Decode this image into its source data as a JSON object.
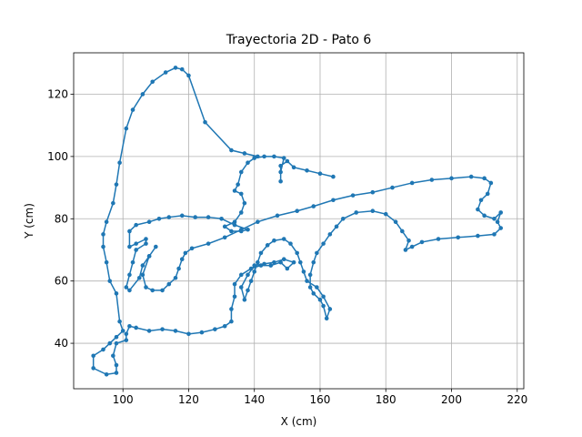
{
  "chart_data": {
    "type": "line",
    "title": "Trayectoria 2D - Pato 6",
    "x_label": "X (cm)",
    "y_label": "Y (cm)",
    "color": "#1f77b4",
    "grid": true,
    "xlim": [
      85,
      222
    ],
    "ylim": [
      25.4,
      133.3
    ],
    "xticks": [
      100,
      120,
      140,
      160,
      180,
      200,
      220
    ],
    "yticks": [
      40,
      60,
      80,
      100,
      120
    ],
    "x": [
      164,
      160,
      156,
      152,
      150,
      148,
      148,
      148,
      149,
      146,
      143,
      140,
      138,
      136,
      135,
      134,
      136,
      137,
      136,
      134,
      131,
      133,
      136,
      138,
      134,
      130,
      126,
      122,
      118,
      114,
      111,
      108,
      104,
      102,
      102,
      104,
      107,
      107,
      104,
      103,
      102,
      101,
      102,
      105,
      106,
      108,
      110,
      108,
      106,
      107,
      109,
      112,
      114,
      116,
      117,
      118,
      119,
      121,
      126,
      131,
      136,
      141,
      147,
      153,
      158,
      164,
      170,
      176,
      182,
      188,
      194,
      200,
      206,
      210,
      212,
      211,
      209,
      208,
      210,
      213,
      215,
      214,
      215,
      213,
      208,
      202,
      196,
      191,
      188,
      186,
      187,
      185,
      183,
      180,
      176,
      171,
      167,
      165,
      163,
      161,
      159,
      158,
      157,
      157,
      158,
      160,
      161,
      162,
      163,
      161,
      159,
      156,
      155,
      154,
      153,
      151,
      149,
      146,
      144,
      142,
      141,
      140,
      139,
      138,
      137,
      136,
      138,
      140,
      143,
      146,
      149,
      152,
      150,
      148,
      145,
      142,
      139,
      136,
      134,
      134,
      133,
      133,
      131,
      128,
      124,
      120,
      116,
      112,
      108,
      104,
      102,
      101,
      101,
      98,
      97,
      98,
      98,
      95,
      91,
      91,
      94,
      96,
      98,
      100,
      99,
      98,
      96,
      95,
      94,
      94,
      95,
      97,
      98,
      99,
      101,
      103,
      106,
      109,
      113,
      116,
      118,
      120,
      125,
      133,
      137,
      141
    ],
    "y": [
      93.5,
      94.5,
      95.5,
      96.5,
      98.5,
      97,
      92,
      95,
      99.5,
      100,
      100,
      99.5,
      98,
      95,
      91,
      89,
      88,
      85,
      82,
      79,
      77.5,
      76,
      76,
      76.5,
      78,
      80,
      80.5,
      80.5,
      81,
      80.5,
      80,
      79,
      78,
      76,
      71,
      72,
      73.5,
      72,
      70,
      66,
      62,
      58,
      57,
      61,
      65,
      68,
      71,
      68,
      62,
      58,
      57,
      57,
      59,
      61,
      64,
      67,
      69,
      70.5,
      72,
      74,
      76.5,
      79,
      81,
      82.5,
      84,
      86,
      87.5,
      88.5,
      90,
      91.5,
      92.5,
      93,
      93.5,
      93,
      91.5,
      88,
      86,
      83,
      81,
      80,
      82,
      79,
      77,
      75,
      74.5,
      74,
      73.5,
      72.5,
      71,
      70,
      73,
      76,
      79,
      81.5,
      82.5,
      82,
      80,
      77.5,
      75,
      72,
      69,
      66,
      62,
      58,
      56,
      54,
      52,
      48,
      51,
      55,
      58,
      60,
      63,
      66,
      69,
      72,
      73.5,
      73,
      71.5,
      69,
      66,
      63,
      60,
      57,
      54,
      58,
      62,
      65,
      65.5,
      66,
      67,
      66,
      64,
      66,
      65,
      65,
      64,
      62,
      59,
      55,
      51,
      47,
      45.5,
      44.5,
      43.5,
      43,
      44,
      44.5,
      44,
      45,
      45.5,
      43,
      41,
      40,
      36,
      33,
      30.5,
      30,
      32,
      36,
      38,
      40,
      42,
      44,
      47,
      56,
      60,
      66,
      71,
      75,
      79,
      85,
      91,
      98,
      109,
      115,
      120,
      124,
      127,
      128.5,
      128,
      126,
      111,
      102,
      101,
      100
    ]
  }
}
